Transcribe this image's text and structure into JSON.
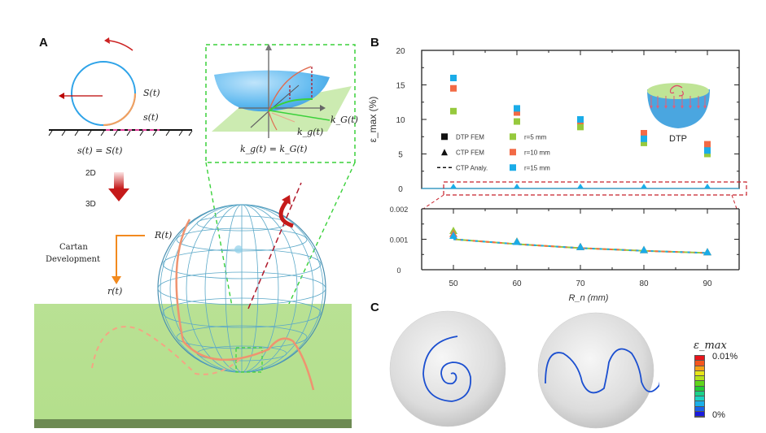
{
  "panels": {
    "a": {
      "label": "A",
      "rolling_labels": {
        "S": "S(t)",
        "s": "s(t)",
        "equation": "s(t) = S(t)"
      },
      "transition": {
        "from": "2D",
        "to": "3D"
      },
      "cartan": {
        "line1": "Cartan",
        "line2": "Development",
        "R": "R(t)",
        "r": "r(t)"
      },
      "inset": {
        "kG": "k_G(t)",
        "kg": "k_g(t)",
        "equation": "k_g(t) = k_G(t)"
      }
    },
    "b": {
      "label": "B"
    },
    "c": {
      "label": "C",
      "colorbar": {
        "title": "ε_max",
        "max_label": "0.01%",
        "min_label": "0%",
        "colors": [
          "#e8141a",
          "#f5561e",
          "#f4a316",
          "#e8e518",
          "#b6e21a",
          "#5fd61a",
          "#22cc36",
          "#1ad18a",
          "#1bd3c4",
          "#1ab0e8",
          "#1a62e8",
          "#1a1ae0"
        ]
      }
    }
  },
  "chart_data": [
    {
      "type": "scatter",
      "title": "",
      "inset_label": "DTP",
      "xlabel": "R_n (mm)",
      "ylabel": "ε_max (%)",
      "x_ticks": [
        50,
        60,
        70,
        80,
        90
      ],
      "ylim": [
        0,
        20
      ],
      "y_ticks": [
        0,
        5,
        10,
        15,
        20
      ],
      "legend": {
        "placement": "middle-left",
        "markers": [
          {
            "symbol": "square",
            "label": "DTP FEM"
          },
          {
            "symbol": "triangle",
            "label": "CTP FEM"
          },
          {
            "symbol": "dashed-line",
            "label": "CTP Analy."
          }
        ],
        "colors": [
          {
            "label": "r=5 mm",
            "color": "#96c93d"
          },
          {
            "label": "r=10 mm",
            "color": "#f26a45"
          },
          {
            "label": "r=15 mm",
            "color": "#1aace8"
          }
        ]
      },
      "series": [
        {
          "name": "DTP FEM r=5mm",
          "marker": "square",
          "color": "#96c93d",
          "x": [
            50,
            60,
            70,
            80,
            90
          ],
          "y": [
            11.2,
            9.7,
            8.9,
            6.6,
            5.0
          ]
        },
        {
          "name": "DTP FEM r=10mm",
          "marker": "square",
          "color": "#f26a45",
          "x": [
            50,
            60,
            70,
            80,
            90
          ],
          "y": [
            14.5,
            11.0,
            9.8,
            8.0,
            6.4
          ]
        },
        {
          "name": "DTP FEM r=15mm",
          "marker": "square",
          "color": "#1aace8",
          "x": [
            50,
            60,
            70,
            80,
            90
          ],
          "y": [
            16.0,
            11.6,
            10.0,
            7.2,
            5.5
          ]
        },
        {
          "name": "CTP FEM",
          "marker": "triangle",
          "color": "#1aace8",
          "x": [
            50,
            60,
            70,
            80,
            90
          ],
          "y": [
            0,
            0,
            0,
            0,
            0
          ]
        }
      ]
    },
    {
      "type": "line",
      "xlabel": "R_n (mm)",
      "x_ticks": [
        50,
        60,
        70,
        80,
        90
      ],
      "ylim": [
        0,
        0.002
      ],
      "y_ticks": [
        "0",
        "0.001",
        "0.002"
      ],
      "series": [
        {
          "name": "CTP FEM r=5mm",
          "marker": "triangle",
          "color": "#96c93d",
          "x": [
            50,
            60,
            70,
            80,
            90
          ],
          "y": [
            0.00128,
            0.00093,
            0.00075,
            0.00065,
            0.00058
          ]
        },
        {
          "name": "CTP FEM r=10mm",
          "marker": "triangle",
          "color": "#f26a45",
          "x": [
            50,
            60,
            70,
            80,
            90
          ],
          "y": [
            0.00118,
            0.00092,
            0.00075,
            0.00065,
            0.00058
          ]
        },
        {
          "name": "CTP FEM r=15mm",
          "marker": "triangle",
          "color": "#1aace8",
          "x": [
            50,
            60,
            70,
            80,
            90
          ],
          "y": [
            0.00112,
            0.00092,
            0.00075,
            0.00065,
            0.00058
          ]
        },
        {
          "name": "CTP Analy.",
          "style": "dashed",
          "x": [
            50,
            60,
            70,
            80,
            90
          ],
          "y": [
            0.001,
            0.00084,
            0.00071,
            0.00062,
            0.00055
          ]
        }
      ]
    }
  ]
}
